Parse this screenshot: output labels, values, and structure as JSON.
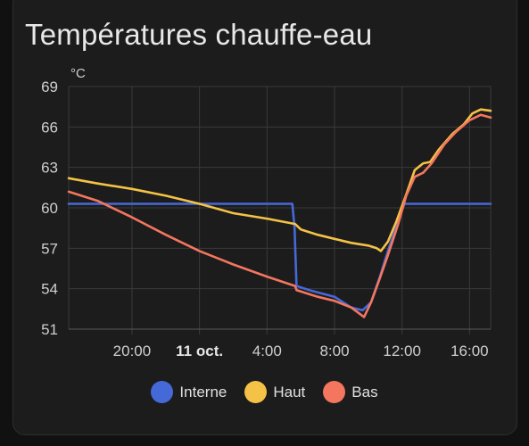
{
  "card": {
    "title": "Températures chauffe-eau"
  },
  "chart_data": {
    "type": "line",
    "title": "Températures chauffe-eau",
    "ylabel": "°C",
    "xlabel": "",
    "ylim": [
      51,
      69
    ],
    "y_ticks": [
      "69",
      "66",
      "63",
      "60",
      "57",
      "54",
      "51"
    ],
    "x_ticks": [
      "20:00",
      "11 oct.",
      "4:00",
      "8:00",
      "12:00",
      "16:00"
    ],
    "x_ticks_bold": [
      "11 oct."
    ],
    "grid": true,
    "legend_position": "bottom",
    "series": [
      {
        "name": "Interne",
        "color": "#4669d8",
        "points": [
          [
            "10 oct. 16:15",
            60.3
          ],
          [
            "10 oct. 20:00",
            60.3
          ],
          [
            "11 oct. 00:00",
            60.3
          ],
          [
            "11 oct. 04:00",
            60.3
          ],
          [
            "11 oct. 05:30",
            60.3
          ],
          [
            "11 oct. 05:38",
            58.5
          ],
          [
            "11 oct. 05:45",
            54.2
          ],
          [
            "11 oct. 06:30",
            53.9
          ],
          [
            "11 oct. 08:00",
            53.4
          ],
          [
            "11 oct. 09:00",
            52.6
          ],
          [
            "11 oct. 09:40",
            52.4
          ],
          [
            "11 oct. 10:10",
            53.0
          ],
          [
            "11 oct. 10:40",
            54.8
          ],
          [
            "11 oct. 11:10",
            56.8
          ],
          [
            "11 oct. 11:45",
            59.0
          ],
          [
            "11 oct. 12:08",
            60.3
          ],
          [
            "11 oct. 14:00",
            60.3
          ],
          [
            "11 oct. 17:15",
            60.3
          ]
        ]
      },
      {
        "name": "Haut",
        "color": "#f4c246",
        "points": [
          [
            "10 oct. 16:15",
            62.2
          ],
          [
            "10 oct. 18:00",
            61.8
          ],
          [
            "10 oct. 20:00",
            61.4
          ],
          [
            "10 oct. 22:00",
            60.9
          ],
          [
            "11 oct. 00:00",
            60.3
          ],
          [
            "11 oct. 02:00",
            59.6
          ],
          [
            "11 oct. 04:00",
            59.2
          ],
          [
            "11 oct. 05:40",
            58.8
          ],
          [
            "11 oct. 06:00",
            58.4
          ],
          [
            "11 oct. 07:00",
            58.0
          ],
          [
            "11 oct. 08:00",
            57.7
          ],
          [
            "11 oct. 09:00",
            57.4
          ],
          [
            "11 oct. 10:00",
            57.2
          ],
          [
            "11 oct. 10:30",
            57.0
          ],
          [
            "11 oct. 10:45",
            56.8
          ],
          [
            "11 oct. 11:10",
            57.5
          ],
          [
            "11 oct. 11:40",
            59.0
          ],
          [
            "11 oct. 12:15",
            61.0
          ],
          [
            "11 oct. 12:45",
            62.8
          ],
          [
            "11 oct. 13:15",
            63.3
          ],
          [
            "11 oct. 13:40",
            63.4
          ],
          [
            "11 oct. 14:10",
            64.3
          ],
          [
            "11 oct. 15:00",
            65.5
          ],
          [
            "11 oct. 15:40",
            66.2
          ],
          [
            "11 oct. 16:10",
            67.0
          ],
          [
            "11 oct. 16:40",
            67.3
          ],
          [
            "11 oct. 17:15",
            67.2
          ]
        ]
      },
      {
        "name": "Bas",
        "color": "#f4765f",
        "points": [
          [
            "10 oct. 16:15",
            61.2
          ],
          [
            "10 oct. 18:00",
            60.5
          ],
          [
            "10 oct. 20:00",
            59.3
          ],
          [
            "10 oct. 22:00",
            58.0
          ],
          [
            "11 oct. 00:00",
            56.8
          ],
          [
            "11 oct. 02:00",
            55.8
          ],
          [
            "11 oct. 04:00",
            54.9
          ],
          [
            "11 oct. 05:40",
            54.2
          ],
          [
            "11 oct. 05:45",
            53.9
          ],
          [
            "11 oct. 07:00",
            53.4
          ],
          [
            "11 oct. 08:00",
            53.1
          ],
          [
            "11 oct. 09:00",
            52.6
          ],
          [
            "11 oct. 09:45",
            51.9
          ],
          [
            "11 oct. 10:10",
            53.0
          ],
          [
            "11 oct. 10:40",
            54.7
          ],
          [
            "11 oct. 11:10",
            56.5
          ],
          [
            "11 oct. 11:45",
            58.7
          ],
          [
            "11 oct. 12:15",
            60.9
          ],
          [
            "11 oct. 12:45",
            62.3
          ],
          [
            "11 oct. 13:15",
            62.6
          ],
          [
            "11 oct. 13:45",
            63.3
          ],
          [
            "11 oct. 14:30",
            64.7
          ],
          [
            "11 oct. 15:10",
            65.6
          ],
          [
            "11 oct. 16:00",
            66.5
          ],
          [
            "11 oct. 16:40",
            66.9
          ],
          [
            "11 oct. 17:15",
            66.7
          ]
        ]
      }
    ]
  },
  "legend": [
    {
      "label": "Interne",
      "color": "#4669d8"
    },
    {
      "label": "Haut",
      "color": "#f4c246"
    },
    {
      "label": "Bas",
      "color": "#f4765f"
    }
  ]
}
